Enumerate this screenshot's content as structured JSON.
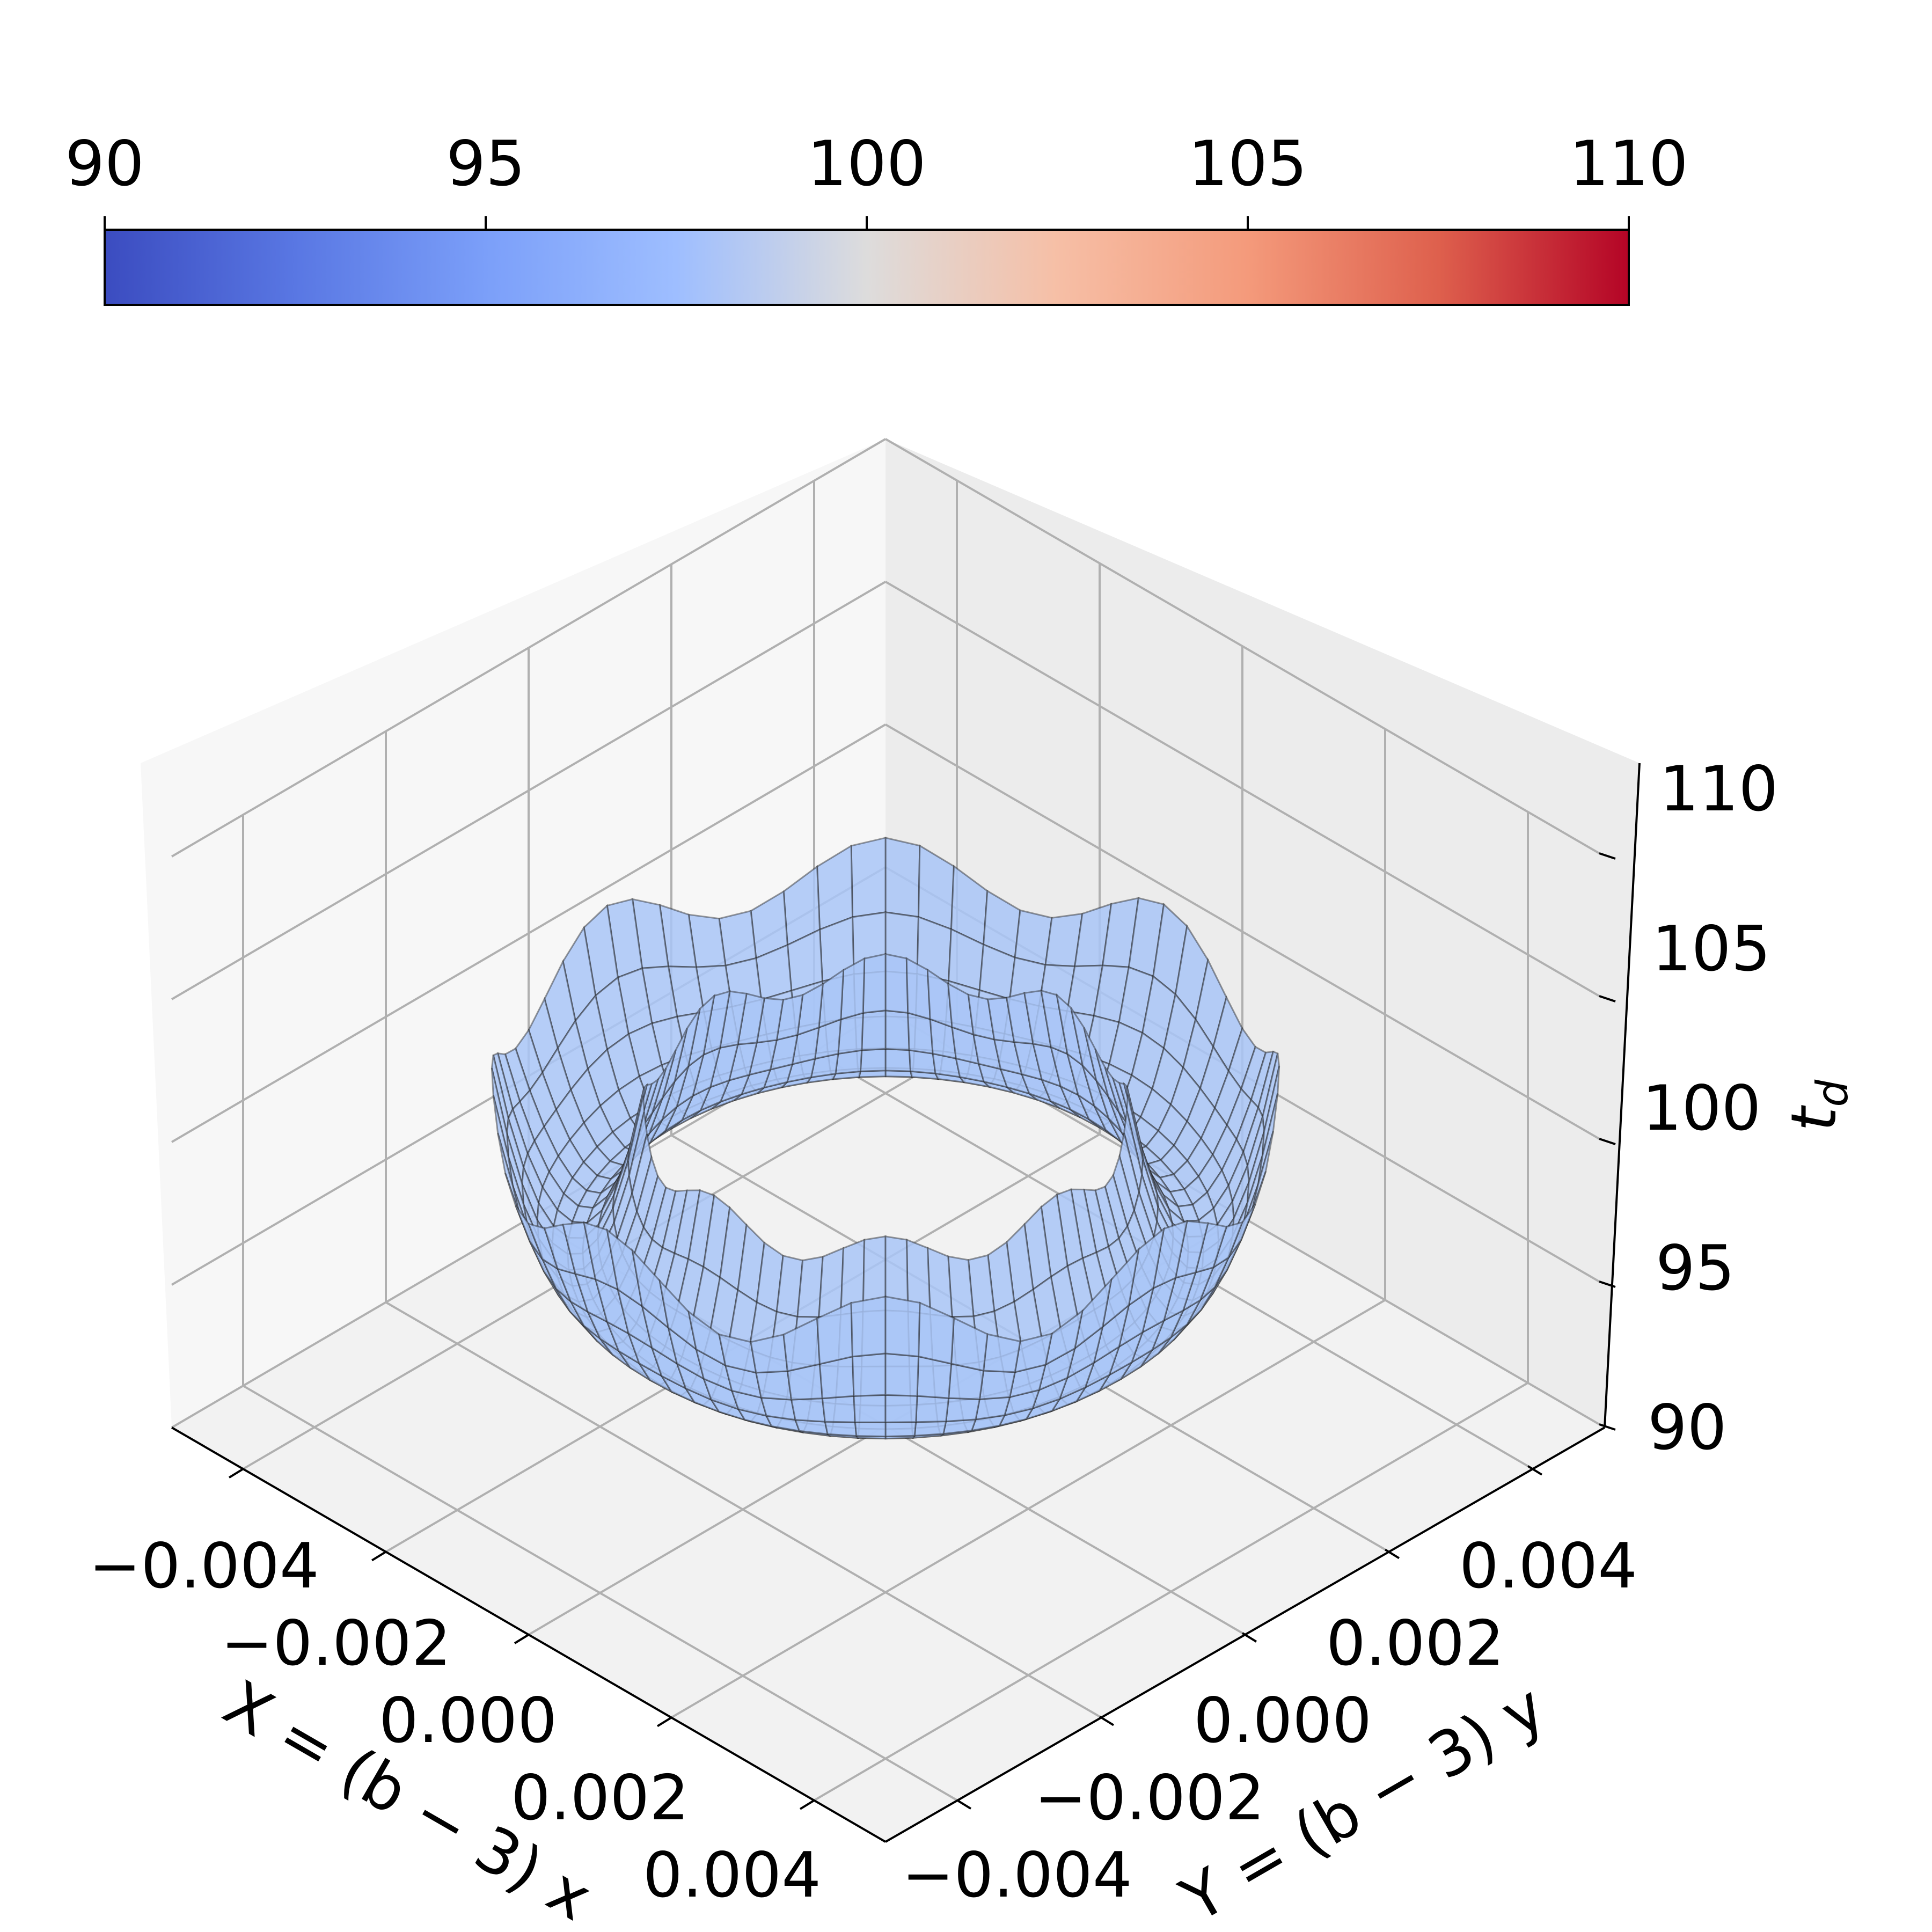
{
  "chart_data": {
    "type": "surface3d",
    "colormap": "coolwarm",
    "colorbar": {
      "range": [
        90,
        110
      ],
      "ticks": [
        "90",
        "95",
        "100",
        "105",
        "110"
      ],
      "placement": "top, horizontal"
    },
    "x_axis": {
      "label": "X = (b − 3) x",
      "range": [
        -0.005,
        0.005
      ],
      "ticks": [
        "−0.004",
        "−0.002",
        "0.000",
        "0.002",
        "0.004"
      ],
      "tick_values": [
        -0.004,
        -0.002,
        0.0,
        0.002,
        0.004
      ]
    },
    "y_axis": {
      "label": "Y = (b − 3) y",
      "range": [
        -0.005,
        0.005
      ],
      "ticks": [
        "−0.004",
        "−0.002",
        "0.000",
        "0.002",
        "0.004"
      ],
      "tick_values": [
        -0.004,
        -0.002,
        0.0,
        0.002,
        0.004
      ]
    },
    "z_axis": {
      "label": "t_d",
      "range": [
        90,
        110
      ],
      "ticks": [
        "90",
        "95",
        "100",
        "105",
        "110"
      ],
      "tick_values": [
        90,
        95,
        100,
        105,
        110
      ]
    },
    "surface": {
      "shape": "annulus",
      "inner_radius": 0.0024,
      "outer_radius": 0.0039,
      "min_value": 96.0,
      "inner_rim_value": 101.0,
      "outer_rim_value": 101.5,
      "color": "#a9c5f7",
      "wire_color": "#222222"
    },
    "grid": true,
    "pane_colors": {
      "floor": "#f2f2f2",
      "left_wall": "#f7f7f7",
      "right_wall": "#ececec"
    }
  }
}
